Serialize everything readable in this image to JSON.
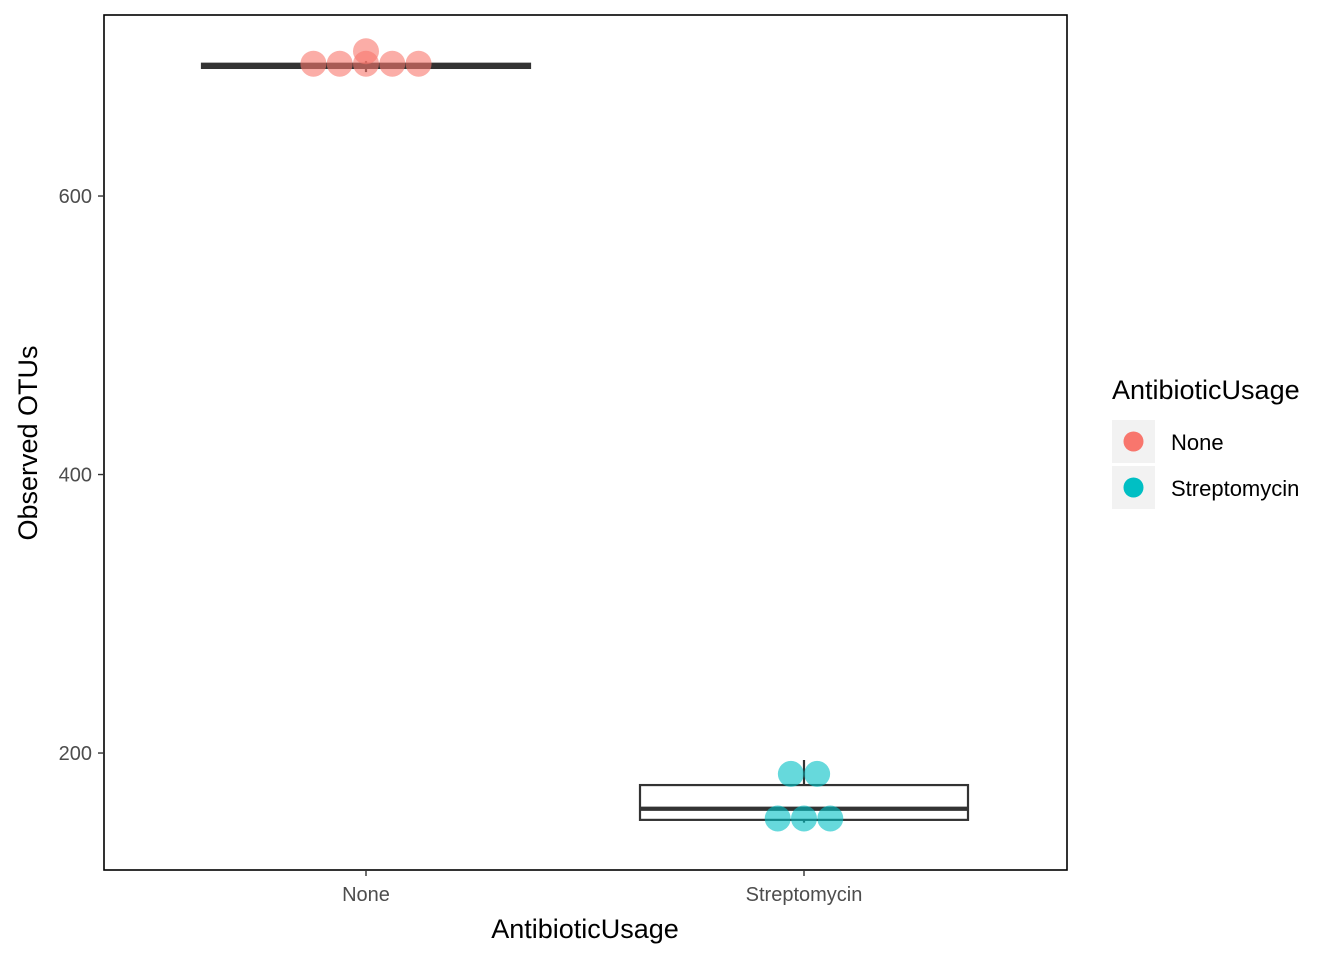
{
  "chart_data": {
    "type": "box",
    "xlabel": "AntibioticUsage",
    "ylabel": "Observed OTUs",
    "categories": [
      "None",
      "Streptomycin"
    ],
    "ylim": [
      116,
      730
    ],
    "yticks": [
      200,
      400,
      600
    ],
    "grid": false,
    "legend": {
      "title": "AntibioticUsage",
      "position": "right",
      "entries": [
        {
          "label": "None",
          "color": "#F8766D"
        },
        {
          "label": "Streptomycin",
          "color": "#00BFC4"
        }
      ]
    },
    "boxes": [
      {
        "category": "None",
        "min": 689,
        "q1": 692,
        "median": 693,
        "q3": 695,
        "max": 697
      },
      {
        "category": "Streptomycin",
        "min": 150,
        "q1": 152,
        "median": 160,
        "q3": 177,
        "max": 195
      }
    ],
    "points": [
      {
        "category": "None",
        "y": 695,
        "offset": -0.12
      },
      {
        "category": "None",
        "y": 695,
        "offset": -0.06
      },
      {
        "category": "None",
        "y": 695,
        "offset": 0.0
      },
      {
        "category": "None",
        "y": 695,
        "offset": 0.06
      },
      {
        "category": "None",
        "y": 695,
        "offset": 0.12
      },
      {
        "category": "None",
        "y": 704,
        "offset": 0.0
      },
      {
        "category": "Streptomycin",
        "y": 185,
        "offset": -0.03
      },
      {
        "category": "Streptomycin",
        "y": 185,
        "offset": 0.03
      },
      {
        "category": "Streptomycin",
        "y": 153,
        "offset": -0.06
      },
      {
        "category": "Streptomycin",
        "y": 153,
        "offset": 0.0
      },
      {
        "category": "Streptomycin",
        "y": 153,
        "offset": 0.06
      }
    ]
  }
}
